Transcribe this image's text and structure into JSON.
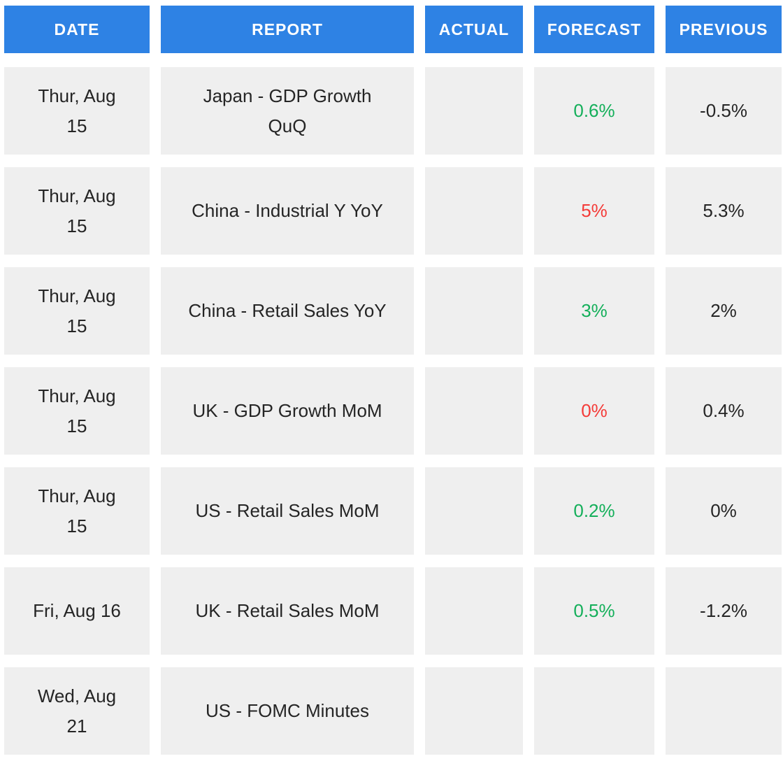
{
  "chart_data": {
    "type": "table",
    "columns": [
      "DATE",
      "REPORT",
      "ACTUAL",
      "FORECAST",
      "PREVIOUS"
    ],
    "rows": [
      {
        "date": "Thur, Aug 15",
        "report": "Japan - GDP Growth QuQ",
        "actual": "",
        "forecast": "0.6%",
        "forecast_sentiment": "positive",
        "previous": "-0.5%"
      },
      {
        "date": "Thur, Aug 15",
        "report": "China - Industrial Y YoY",
        "actual": "",
        "forecast": "5%",
        "forecast_sentiment": "negative",
        "previous": "5.3%"
      },
      {
        "date": "Thur, Aug 15",
        "report": "China - Retail Sales YoY",
        "actual": "",
        "forecast": "3%",
        "forecast_sentiment": "positive",
        "previous": "2%"
      },
      {
        "date": "Thur, Aug 15",
        "report": "UK - GDP Growth MoM",
        "actual": "",
        "forecast": "0%",
        "forecast_sentiment": "negative",
        "previous": "0.4%"
      },
      {
        "date": "Thur, Aug 15",
        "report": "US - Retail Sales MoM",
        "actual": "",
        "forecast": "0.2%",
        "forecast_sentiment": "positive",
        "previous": "0%"
      },
      {
        "date": "Fri, Aug 16",
        "report": "UK - Retail Sales MoM",
        "actual": "",
        "forecast": "0.5%",
        "forecast_sentiment": "positive",
        "previous": "-1.2%"
      },
      {
        "date": "Wed, Aug 21",
        "report": "US - FOMC Minutes",
        "actual": "",
        "forecast": "",
        "forecast_sentiment": null,
        "previous": ""
      }
    ],
    "colors": {
      "header_bg": "#2e82e4",
      "header_text": "#ffffff",
      "cell_bg": "#efefef",
      "body_text": "#252525",
      "positive": "#14af5a",
      "negative": "#f43b38"
    }
  }
}
